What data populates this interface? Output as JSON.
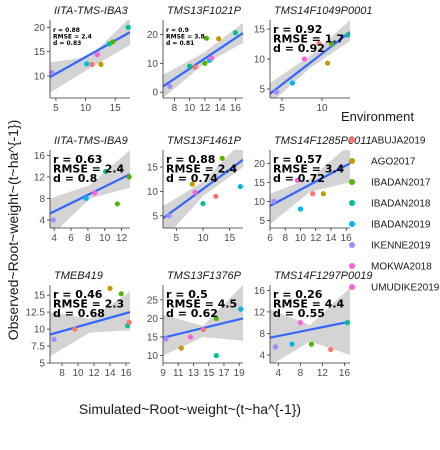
{
  "chart_data": {
    "type": "scatter",
    "xlabel": "Simulated~Root~weight~(t~ha^{-1})",
    "ylabel": "Observed~Root~weight~(t~ha^{-1})",
    "legend_title": "Environment",
    "legend": [
      {
        "name": "ABUJA2019",
        "color": "#F8766D"
      },
      {
        "name": "AGO2017",
        "color": "#C49A00"
      },
      {
        "name": "IBADAN2017",
        "color": "#53B400"
      },
      {
        "name": "IBADAN2018",
        "color": "#00C094"
      },
      {
        "name": "IBADAN2019",
        "color": "#00B6EB"
      },
      {
        "name": "IKENNE2019",
        "color": "#A58AFF"
      },
      {
        "name": "MOKWA2018",
        "color": "#FB61D7"
      },
      {
        "name": "UMUDIKE2019",
        "color": "#FB61D7"
      }
    ],
    "panels": [
      {
        "title": "IITA-TMS-IBA3",
        "xlim": [
          4,
          17.5
        ],
        "ylim": [
          5.5,
          21.5
        ],
        "xticks": [
          5,
          10,
          15
        ],
        "yticks": [
          10,
          15,
          20
        ],
        "annotations": [
          "r = 0.88",
          "RMSE = 2.4",
          "d = 0.83"
        ],
        "annot_size": "small",
        "band": {
          "x": [
            4,
            17.5
          ],
          "y0_lo": 6.6,
          "y0_hi": 12.8,
          "ymid_lo": 11.6,
          "ymid_hi": 14.0,
          "y1_lo": 16.4,
          "y1_hi": 22.0
        },
        "fit": [
          [
            4,
            9.8
          ],
          [
            17.5,
            19.0
          ]
        ],
        "points": [
          {
            "x": 4.3,
            "y": 10.7,
            "c": "#A58AFF"
          },
          {
            "x": 10.2,
            "y": 12.5,
            "c": "#00B6EB"
          },
          {
            "x": 11.1,
            "y": 12.4,
            "c": "#F8766D"
          },
          {
            "x": 12.0,
            "y": 14.4,
            "c": "#FB61D7"
          },
          {
            "x": 12.6,
            "y": 12.4,
            "c": "#C49A00"
          },
          {
            "x": 14.0,
            "y": 16.6,
            "c": "#00C094"
          },
          {
            "x": 14.6,
            "y": 17.0,
            "c": "#53B400"
          },
          {
            "x": 17.2,
            "y": 20.0,
            "c": "#00C094"
          }
        ]
      },
      {
        "title": "TMS13F1021P",
        "xlim": [
          6.5,
          17
        ],
        "ylim": [
          -2,
          25
        ],
        "xticks": [
          8,
          10,
          12,
          14,
          16
        ],
        "yticks": [
          0,
          10,
          20
        ],
        "annotations": [
          "r = 0.9",
          "RMSE = 3.8",
          "d = 0.81"
        ],
        "annot_size": "small",
        "band": {
          "x": [
            6.5,
            17
          ],
          "y0_lo": -2.0,
          "y0_hi": 6.0,
          "ymid_lo": 9.5,
          "ymid_hi": 13.5,
          "y1_lo": 17.0,
          "y1_hi": 24.0
        },
        "fit": [
          [
            6.5,
            2.0
          ],
          [
            17,
            20.5
          ]
        ],
        "points": [
          {
            "x": 7.4,
            "y": 2.0,
            "c": "#A58AFF"
          },
          {
            "x": 10.0,
            "y": 9.0,
            "c": "#00C094"
          },
          {
            "x": 10.7,
            "y": 8.7,
            "c": "#F8766D"
          },
          {
            "x": 12.0,
            "y": 10.0,
            "c": "#53B400"
          },
          {
            "x": 12.6,
            "y": 11.0,
            "c": "#00B6EB"
          },
          {
            "x": 12.9,
            "y": 11.8,
            "c": "#FB61D7"
          },
          {
            "x": 12.2,
            "y": 18.7,
            "c": "#53B400"
          },
          {
            "x": 13.8,
            "y": 18.5,
            "c": "#C49A00"
          },
          {
            "x": 16.0,
            "y": 20.6,
            "c": "#00C094"
          }
        ]
      },
      {
        "title": "TMS14F1049P0001",
        "xlim": [
          3.5,
          13.5
        ],
        "ylim": [
          3.5,
          16.5
        ],
        "xticks": [
          5,
          10
        ],
        "yticks": [
          5,
          10,
          15
        ],
        "annotations": [
          "r = 0.92",
          "RMSE = 1.7",
          "d = 0.92"
        ],
        "annot_size": "large",
        "band": {
          "x": [
            3.5,
            13.5
          ],
          "y0_lo": 2.5,
          "y0_hi": 6.0,
          "ymid_lo": 8.5,
          "ymid_hi": 10.5,
          "y1_lo": 13.0,
          "y1_hi": 16.5
        },
        "fit": [
          [
            3.5,
            4.2
          ],
          [
            13.5,
            14.5
          ]
        ],
        "points": [
          {
            "x": 4.3,
            "y": 4.5,
            "c": "#A58AFF"
          },
          {
            "x": 6.3,
            "y": 6.0,
            "c": "#00B6EB"
          },
          {
            "x": 7.8,
            "y": 10.0,
            "c": "#FB61D7"
          },
          {
            "x": 9.6,
            "y": 12.6,
            "c": "#F8766D"
          },
          {
            "x": 10.7,
            "y": 9.3,
            "c": "#C49A00"
          },
          {
            "x": 11.2,
            "y": 12.5,
            "c": "#53B400"
          },
          {
            "x": 13.2,
            "y": 14.0,
            "c": "#00C094"
          }
        ]
      },
      {
        "title": "IITA-TMS-IBA9",
        "xlim": [
          3.5,
          13
        ],
        "ylim": [
          2.5,
          17
        ],
        "xticks": [
          4,
          6,
          8,
          10,
          12
        ],
        "yticks": [
          4,
          8,
          12,
          16
        ],
        "annotations": [
          "r = 0.63",
          "RMSE = 2.4",
          "d = 0.8"
        ],
        "annot_size": "large",
        "band": {
          "x": [
            3.5,
            13
          ],
          "y0_lo": 0.8,
          "y0_hi": 8.0,
          "ymid_lo": 8.0,
          "ymid_hi": 10.5,
          "y1_lo": 10.0,
          "y1_hi": 17.0
        },
        "fit": [
          [
            3.5,
            5.2
          ],
          [
            13,
            12.5
          ]
        ],
        "points": [
          {
            "x": 3.9,
            "y": 4.0,
            "c": "#A58AFF"
          },
          {
            "x": 7.8,
            "y": 8.0,
            "c": "#00B6EB"
          },
          {
            "x": 8.8,
            "y": 9.0,
            "c": "#FB61D7"
          },
          {
            "x": 10.1,
            "y": 13.0,
            "c": "#00C094"
          },
          {
            "x": 11.5,
            "y": 7.0,
            "c": "#53B400"
          },
          {
            "x": 12.9,
            "y": 12.0,
            "c": "#53B400"
          }
        ]
      },
      {
        "title": "TMS13F1461P",
        "xlim": [
          2.5,
          17.5
        ],
        "ylim": [
          2.5,
          18.5
        ],
        "xticks": [
          5,
          10,
          15
        ],
        "yticks": [
          5,
          10,
          15
        ],
        "annotations": [
          "r = 0.88",
          "RMSE = 2.4",
          "d = 0.74"
        ],
        "annot_size": "large",
        "band": {
          "x": [
            2.5,
            17.5
          ],
          "y0_lo": 0.0,
          "y0_hi": 7.0,
          "ymid_lo": 9.0,
          "ymid_hi": 12.0,
          "y1_lo": 15.0,
          "y1_hi": 20.5
        },
        "fit": [
          [
            2.5,
            4.5
          ],
          [
            17.5,
            16.5
          ]
        ],
        "points": [
          {
            "x": 3.6,
            "y": 5.0,
            "c": "#A58AFF"
          },
          {
            "x": 8.0,
            "y": 11.5,
            "c": "#C49A00"
          },
          {
            "x": 8.5,
            "y": 9.8,
            "c": "#FB61D7"
          },
          {
            "x": 10.0,
            "y": 7.5,
            "c": "#00C094"
          },
          {
            "x": 12.4,
            "y": 9.0,
            "c": "#F8766D"
          },
          {
            "x": 13.6,
            "y": 16.8,
            "c": "#53B400"
          },
          {
            "x": 17.0,
            "y": 11.0,
            "c": "#00B6EB"
          }
        ]
      },
      {
        "title": "TMS14F1285P0011",
        "xlim": [
          6,
          16.5
        ],
        "ylim": [
          3,
          23.5
        ],
        "xticks": [
          6,
          8,
          10,
          12,
          14,
          16
        ],
        "yticks": [
          5,
          10,
          15,
          20
        ],
        "annotations": [
          "r = 0.57",
          "RMSE = 3.4",
          "d = 0.72"
        ],
        "annot_size": "large",
        "band": {
          "x": [
            6,
            16.5
          ],
          "y0_lo": 4.0,
          "y0_hi": 12.0,
          "ymid_lo": 12.5,
          "ymid_hi": 16.0,
          "y1_lo": 15.0,
          "y1_hi": 25.0
        },
        "fit": [
          [
            6,
            8.8
          ],
          [
            16.5,
            20.0
          ]
        ],
        "points": [
          {
            "x": 6.5,
            "y": 10.0,
            "c": "#A58AFF"
          },
          {
            "x": 9.6,
            "y": 15.5,
            "c": "#FB61D7"
          },
          {
            "x": 10.0,
            "y": 8.0,
            "c": "#00B6EB"
          },
          {
            "x": 11.6,
            "y": 12.0,
            "c": "#F8766D"
          },
          {
            "x": 13.0,
            "y": 12.0,
            "c": "#C49A00"
          }
        ]
      },
      {
        "title": "TMEB419",
        "xlim": [
          6.5,
          16.5
        ],
        "ylim": [
          5,
          16.5
        ],
        "xticks": [
          8,
          10,
          12,
          14,
          16
        ],
        "yticks": [
          5,
          7.5,
          10,
          12.5,
          15
        ],
        "annotations": [
          "r = 0.46",
          "RMSE = 2.3",
          "d = 0.68"
        ],
        "annot_size": "large",
        "band": {
          "x": [
            6.5,
            16.5
          ],
          "y0_lo": 6.0,
          "y0_hi": 12.5,
          "ymid_lo": 9.5,
          "ymid_hi": 11.5,
          "y1_lo": 9.8,
          "y1_hi": 15.5
        },
        "fit": [
          [
            6.5,
            9.2
          ],
          [
            16.5,
            12.5
          ]
        ],
        "points": [
          {
            "x": 7.0,
            "y": 8.5,
            "c": "#A58AFF"
          },
          {
            "x": 9.6,
            "y": 10.0,
            "c": "#F8766D"
          },
          {
            "x": 14.0,
            "y": 16.0,
            "c": "#C49A00"
          },
          {
            "x": 15.4,
            "y": 15.2,
            "c": "#53B400"
          },
          {
            "x": 16.2,
            "y": 10.5,
            "c": "#00C094"
          },
          {
            "x": 16.4,
            "y": 11.0,
            "c": "#F8766D"
          }
        ]
      },
      {
        "title": "TMS13F1376P",
        "xlim": [
          9,
          19.5
        ],
        "ylim": [
          8,
          29
        ],
        "xticks": [
          9,
          11,
          13,
          15,
          17,
          19
        ],
        "yticks": [
          10,
          15,
          20,
          25
        ],
        "annotations": [
          "r = 0.5",
          "RMSE = 4.5",
          "d = 0.62"
        ],
        "annot_size": "large",
        "band": {
          "x": [
            9,
            19.5
          ],
          "y0_lo": 10.0,
          "y0_hi": 21.0,
          "ymid_lo": 15.0,
          "ymid_hi": 18.0,
          "y1_lo": 14.0,
          "y1_hi": 29.0
        },
        "fit": [
          [
            9,
            14.8
          ],
          [
            19.5,
            20.0
          ]
        ],
        "points": [
          {
            "x": 9.4,
            "y": 14.5,
            "c": "#A58AFF"
          },
          {
            "x": 11.4,
            "y": 12.0,
            "c": "#C49A00"
          },
          {
            "x": 12.6,
            "y": 15.0,
            "c": "#FB61D7"
          },
          {
            "x": 14.3,
            "y": 17.0,
            "c": "#F8766D"
          },
          {
            "x": 16.0,
            "y": 20.0,
            "c": "#53B400"
          },
          {
            "x": 16.0,
            "y": 10.0,
            "c": "#00C094"
          },
          {
            "x": 19.2,
            "y": 22.5,
            "c": "#00B6EB"
          }
        ]
      },
      {
        "title": "TMS14F1297P0019",
        "xlim": [
          2.5,
          17
        ],
        "ylim": [
          2.5,
          17
        ],
        "xticks": [
          4,
          8,
          12,
          16
        ],
        "yticks": [
          4,
          8,
          12,
          16
        ],
        "annotations": [
          "r = 0.26",
          "RMSE = 4.4",
          "d = 0.55"
        ],
        "annot_size": "large",
        "band": {
          "x": [
            2.5,
            17
          ],
          "y0_lo": 2.0,
          "y0_hi": 12.5,
          "ymid_lo": 6.5,
          "ymid_hi": 9.5,
          "y1_lo": 4.0,
          "y1_hi": 16.5
        },
        "fit": [
          [
            2.5,
            7.2
          ],
          [
            17,
            10.2
          ]
        ],
        "points": [
          {
            "x": 3.5,
            "y": 5.5,
            "c": "#A58AFF"
          },
          {
            "x": 6.5,
            "y": 6.0,
            "c": "#00B6EB"
          },
          {
            "x": 8.0,
            "y": 10.0,
            "c": "#FB61D7"
          },
          {
            "x": 10.0,
            "y": 6.0,
            "c": "#53B400"
          },
          {
            "x": 13.5,
            "y": 5.0,
            "c": "#F8766D"
          },
          {
            "x": 16.5,
            "y": 10.0,
            "c": "#00C094"
          }
        ]
      }
    ]
  }
}
